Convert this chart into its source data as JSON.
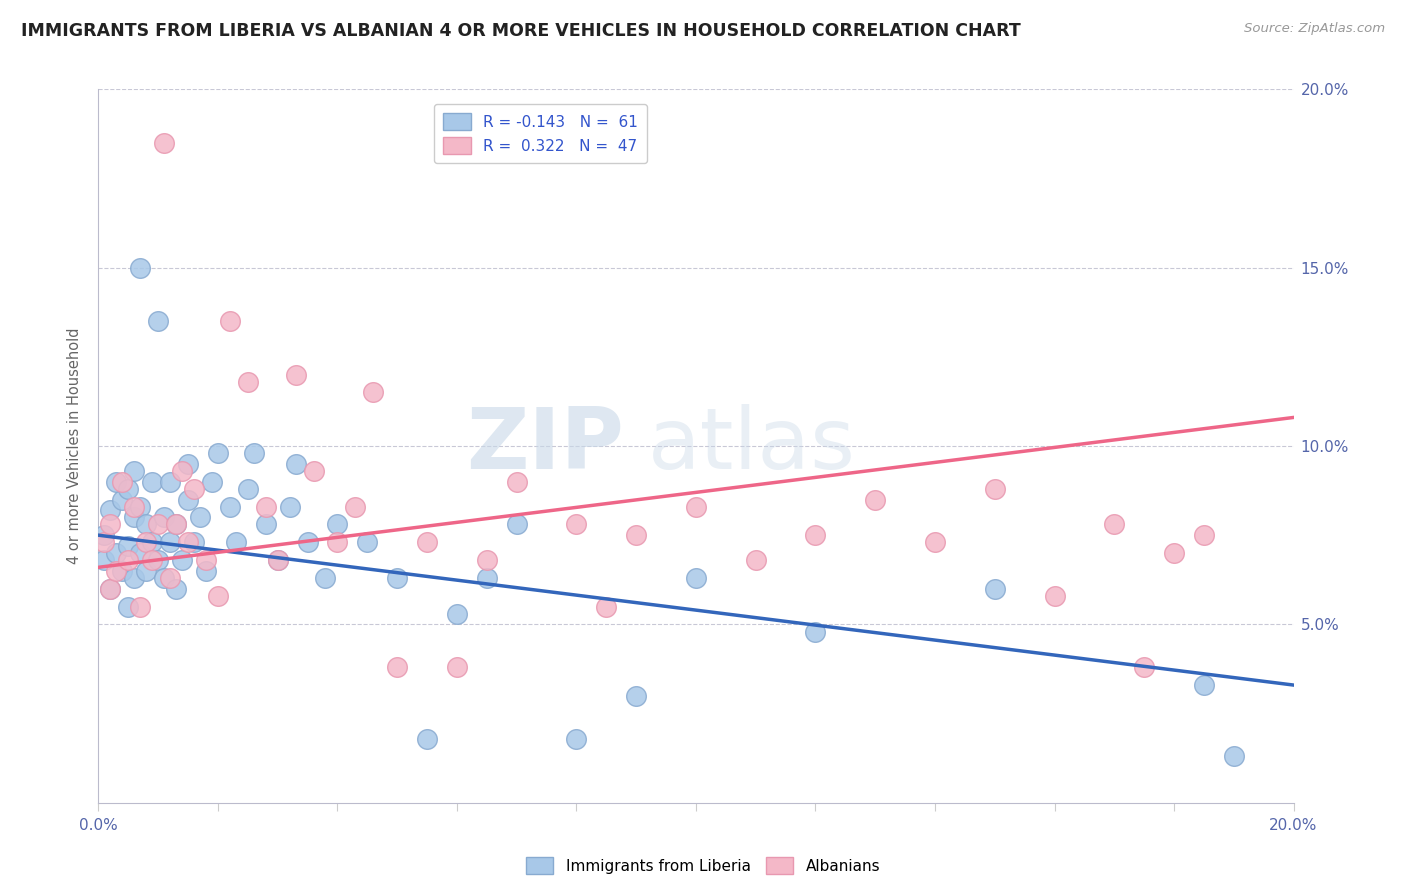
{
  "title": "IMMIGRANTS FROM LIBERIA VS ALBANIAN 4 OR MORE VEHICLES IN HOUSEHOLD CORRELATION CHART",
  "source": "Source: ZipAtlas.com",
  "ylabel": "4 or more Vehicles in Household",
  "xlim": [
    0.0,
    0.2
  ],
  "ylim": [
    0.0,
    0.2
  ],
  "yticks": [
    0.05,
    0.1,
    0.15,
    0.2
  ],
  "xticks": [
    0.0,
    0.02,
    0.04,
    0.06,
    0.08,
    0.1,
    0.12,
    0.14,
    0.16,
    0.18,
    0.2
  ],
  "series1_color": "#a8c8e8",
  "series2_color": "#f4b8c8",
  "series1_line_color": "#3366bb",
  "series2_line_color": "#ee6688",
  "series1_label": "Immigrants from Liberia",
  "series2_label": "Albanians",
  "R1": -0.143,
  "N1": 61,
  "R2": 0.322,
  "N2": 47,
  "legend_R_color": "#3355cc",
  "blue_line_y0": 0.075,
  "blue_line_y1": 0.033,
  "pink_line_y0": 0.066,
  "pink_line_y1": 0.108,
  "blue_scatter_x": [
    0.001,
    0.001,
    0.002,
    0.002,
    0.003,
    0.003,
    0.004,
    0.004,
    0.005,
    0.005,
    0.005,
    0.006,
    0.006,
    0.006,
    0.007,
    0.007,
    0.007,
    0.008,
    0.008,
    0.009,
    0.009,
    0.01,
    0.01,
    0.011,
    0.011,
    0.012,
    0.012,
    0.013,
    0.013,
    0.014,
    0.015,
    0.015,
    0.016,
    0.017,
    0.018,
    0.019,
    0.02,
    0.022,
    0.023,
    0.025,
    0.026,
    0.028,
    0.03,
    0.032,
    0.033,
    0.035,
    0.038,
    0.04,
    0.045,
    0.05,
    0.055,
    0.06,
    0.065,
    0.07,
    0.08,
    0.09,
    0.1,
    0.12,
    0.15,
    0.185,
    0.19
  ],
  "blue_scatter_y": [
    0.075,
    0.068,
    0.06,
    0.082,
    0.07,
    0.09,
    0.065,
    0.085,
    0.055,
    0.072,
    0.088,
    0.063,
    0.08,
    0.093,
    0.07,
    0.083,
    0.15,
    0.065,
    0.078,
    0.073,
    0.09,
    0.068,
    0.135,
    0.063,
    0.08,
    0.073,
    0.09,
    0.06,
    0.078,
    0.068,
    0.085,
    0.095,
    0.073,
    0.08,
    0.065,
    0.09,
    0.098,
    0.083,
    0.073,
    0.088,
    0.098,
    0.078,
    0.068,
    0.083,
    0.095,
    0.073,
    0.063,
    0.078,
    0.073,
    0.063,
    0.018,
    0.053,
    0.063,
    0.078,
    0.018,
    0.03,
    0.063,
    0.048,
    0.06,
    0.033,
    0.013
  ],
  "pink_scatter_x": [
    0.001,
    0.002,
    0.002,
    0.003,
    0.004,
    0.005,
    0.006,
    0.007,
    0.008,
    0.009,
    0.01,
    0.011,
    0.012,
    0.013,
    0.014,
    0.015,
    0.016,
    0.018,
    0.02,
    0.022,
    0.025,
    0.028,
    0.03,
    0.033,
    0.036,
    0.04,
    0.043,
    0.046,
    0.05,
    0.055,
    0.06,
    0.065,
    0.07,
    0.08,
    0.085,
    0.09,
    0.1,
    0.11,
    0.12,
    0.13,
    0.14,
    0.15,
    0.16,
    0.17,
    0.175,
    0.18,
    0.185
  ],
  "pink_scatter_y": [
    0.073,
    0.06,
    0.078,
    0.065,
    0.09,
    0.068,
    0.083,
    0.055,
    0.073,
    0.068,
    0.078,
    0.185,
    0.063,
    0.078,
    0.093,
    0.073,
    0.088,
    0.068,
    0.058,
    0.135,
    0.118,
    0.083,
    0.068,
    0.12,
    0.093,
    0.073,
    0.083,
    0.115,
    0.038,
    0.073,
    0.038,
    0.068,
    0.09,
    0.078,
    0.055,
    0.075,
    0.083,
    0.068,
    0.075,
    0.085,
    0.073,
    0.088,
    0.058,
    0.078,
    0.038,
    0.07,
    0.075
  ]
}
